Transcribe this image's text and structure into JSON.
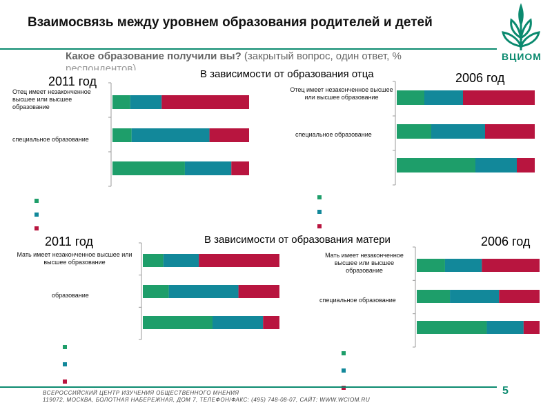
{
  "title": "Взаимосвязь между уровнем образования родителей и детей",
  "subtitle": {
    "question": "Какое образование получили вы?",
    "rest": "(закрытый вопрос, один ответ, %",
    "rest2": "респондентов)"
  },
  "logo": {
    "text": "ВЦИОМ",
    "icon": "tree-logo-icon"
  },
  "sections": {
    "father": "В зависимости от образования отца",
    "mother": "В зависимости от образования матери"
  },
  "colors": {
    "green": "#1e9e6a",
    "teal": "#12889a",
    "crimson": "#b8153f",
    "accent": "#0b8a6f"
  },
  "chart_data": [
    {
      "type": "bar",
      "stacked": true,
      "orientation": "horizontal",
      "title": "2011 год",
      "group": "father",
      "categories": [
        "Отец имеет незаконченное высшее или высшее образование",
        "специальное образование",
        ""
      ],
      "series": [
        {
          "values": [
            13,
            14,
            53
          ]
        },
        {
          "values": [
            23,
            57,
            34
          ]
        },
        {
          "values": [
            64,
            29,
            13
          ]
        }
      ],
      "xlim": [
        0,
        100
      ]
    },
    {
      "type": "bar",
      "stacked": true,
      "orientation": "horizontal",
      "title": "2006 год",
      "group": "father",
      "categories": [
        "Отец имеет незаконченное высшее или высшее образование",
        "специальное образование",
        ""
      ],
      "series": [
        {
          "values": [
            20,
            25,
            57
          ]
        },
        {
          "values": [
            28,
            39,
            30
          ]
        },
        {
          "values": [
            52,
            36,
            13
          ]
        }
      ],
      "xlim": [
        0,
        100
      ]
    },
    {
      "type": "bar",
      "stacked": true,
      "orientation": "horizontal",
      "title": "2011 год",
      "group": "mother",
      "categories": [
        "Мать имеет незаконченное высшее или высшее образование",
        "образование",
        ""
      ],
      "series": [
        {
          "values": [
            15,
            19,
            51
          ]
        },
        {
          "values": [
            26,
            51,
            37
          ]
        },
        {
          "values": [
            59,
            30,
            12
          ]
        }
      ],
      "xlim": [
        0,
        100
      ]
    },
    {
      "type": "bar",
      "stacked": true,
      "orientation": "horizontal",
      "title": "2006 год",
      "group": "mother",
      "categories": [
        "Мать имеет незаконченное высшее или высшее образование",
        "специальное образование",
        ""
      ],
      "series": [
        {
          "values": [
            23,
            27,
            57
          ]
        },
        {
          "values": [
            30,
            40,
            30
          ]
        },
        {
          "values": [
            47,
            33,
            13
          ]
        }
      ],
      "xlim": [
        0,
        100
      ]
    }
  ],
  "footer": {
    "line1": "ВСЕРОССИЙСКИЙ ЦЕНТР ИЗУЧЕНИЯ ОБЩЕСТВЕННОГО МНЕНИЯ",
    "line2": "119072, МОСКВА, БОЛОТНАЯ НАБЕРЕЖНАЯ, ДОМ 7, ТЕЛЕФОН/ФАКС: (495) 748-08-07, САЙТ: WWW.WCIOM.RU"
  },
  "page_number": "5"
}
